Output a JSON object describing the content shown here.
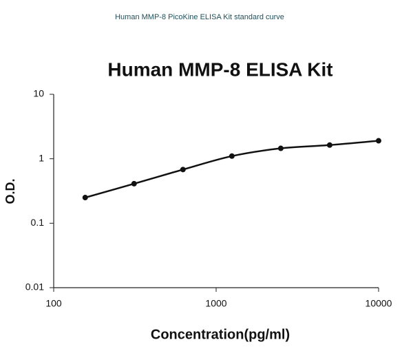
{
  "chart_data": {
    "type": "scatter",
    "caption": "Human MMP-8 PicoKine ELISA Kit standard curve",
    "title": "Human MMP-8 ELISA Kit",
    "x_label": "Concentration(pg/ml)",
    "y_label": "O.D.",
    "x": [
      156.25,
      312.5,
      625,
      1250,
      2500,
      5000,
      10000
    ],
    "values": [
      0.25,
      0.41,
      0.68,
      1.1,
      1.45,
      1.63,
      1.9
    ],
    "color": "#111111",
    "xlog": true,
    "ylog": true,
    "xlim": [
      100,
      10000
    ],
    "ylim": [
      0.01,
      10
    ],
    "xticks": [
      100,
      1000,
      10000
    ],
    "yticks": [
      0.01,
      0.1,
      1,
      10
    ]
  }
}
